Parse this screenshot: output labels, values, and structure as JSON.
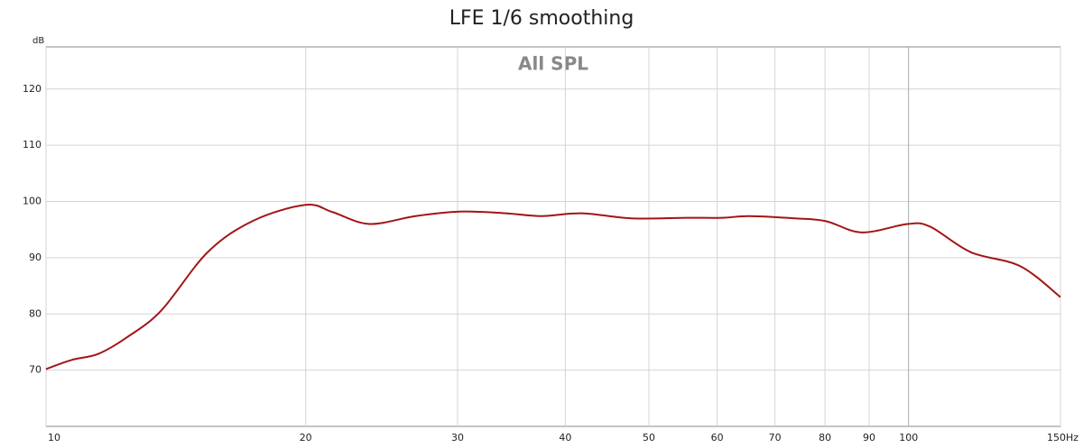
{
  "chart_data": {
    "type": "line",
    "title": "LFE 1/6 smoothing",
    "subtitle": "All SPL",
    "y_label": "dB",
    "x": [
      10,
      10.7,
      11.5,
      12.4,
      13.6,
      15.4,
      17.4,
      20,
      21.5,
      23.7,
      26.8,
      30.2,
      34.1,
      37.5,
      41.8,
      47.7,
      55.2,
      60.8,
      65.4,
      73.8,
      80.2,
      88.3,
      99.8,
      106,
      118,
      134.7,
      150
    ],
    "series": [
      {
        "name": "LFE",
        "color": "#a31515",
        "values": [
          70.2,
          71.8,
          72.9,
          75.8,
          80.6,
          91,
          96.6,
          99.4,
          98.1,
          96,
          97.4,
          98.2,
          97.9,
          97.4,
          97.9,
          97,
          97.1,
          97.1,
          97.4,
          97,
          96.5,
          94.5,
          96,
          95.5,
          91,
          88.5,
          83
        ]
      }
    ],
    "xscale": "log",
    "xlim": [
      10,
      150
    ],
    "xticks": [
      10,
      20,
      30,
      40,
      50,
      60,
      70,
      80,
      90,
      100,
      {
        "value": 150,
        "label": "150Hz"
      }
    ],
    "ylim": [
      60,
      127.5
    ],
    "yticks": [
      70,
      80,
      90,
      100,
      110,
      120
    ],
    "grid": true
  }
}
